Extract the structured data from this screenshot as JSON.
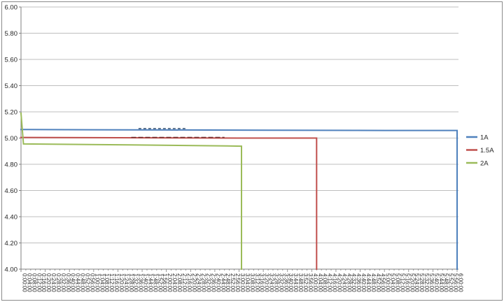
{
  "chart_data": {
    "type": "line",
    "title": "",
    "xlabel": "",
    "ylabel": "",
    "ylim": [
      4.0,
      6.0
    ],
    "ytick_step": 0.2,
    "ytick_labels": [
      "6.00",
      "5.80",
      "5.60",
      "5.40",
      "5.20",
      "5.00",
      "4.80",
      "4.60",
      "4.40",
      "4.20",
      "4.00"
    ],
    "grid": true,
    "x_unit": "elapsed time (h:mm:ss)",
    "x_total_minutes": 360,
    "x_categories": [
      "0:00:00",
      "0:04:00",
      "0:08:00",
      "0:12:00",
      "0:16:00",
      "0:20:00",
      "0:24:00",
      "0:28:00",
      "0:32:00",
      "0:36:00",
      "0:40:00",
      "0:44:00",
      "0:48:00",
      "0:52:00",
      "0:56:00",
      "1:00:00",
      "1:04:00",
      "1:08:00",
      "1:12:00",
      "1:16:00",
      "1:20:00",
      "1:24:00",
      "1:28:00",
      "1:32:00",
      "1:36:00",
      "1:40:00",
      "1:44:00",
      "1:48:00",
      "1:52:00",
      "1:56:00",
      "2:00:00",
      "2:04:00",
      "2:08:00",
      "2:12:00",
      "2:16:00",
      "2:20:00",
      "2:24:00",
      "2:28:00",
      "2:32:00",
      "2:36:00",
      "2:40:00",
      "2:44:00",
      "2:48:00",
      "2:52:00",
      "2:56:00",
      "3:00:00",
      "3:04:00",
      "3:08:00",
      "3:12:00",
      "3:16:00",
      "3:20:00",
      "3:24:00",
      "3:28:00",
      "3:32:00",
      "3:36:00",
      "3:40:00",
      "3:44:00",
      "3:48:00",
      "3:52:00",
      "3:56:00",
      "4:00:00",
      "4:04:00",
      "4:08:00",
      "4:12:00",
      "4:16:00",
      "4:20:00",
      "4:24:00",
      "4:28:00",
      "4:32:00",
      "4:36:00",
      "4:40:00",
      "4:44:00",
      "4:48:00",
      "4:52:00",
      "4:56:00",
      "5:00:00",
      "5:04:00",
      "5:08:00",
      "5:12:00",
      "5:16:00",
      "5:20:00",
      "5:24:00",
      "5:28:00",
      "5:32:00",
      "5:36:00",
      "5:40:00",
      "5:44:00",
      "5:48:00",
      "5:52:00",
      "5:56:00",
      "6:00:00"
    ],
    "legend": {
      "position": "right",
      "entries": [
        {
          "label": "1A",
          "color": "#4F81BD"
        },
        {
          "label": "1.5A",
          "color": "#C0504D"
        },
        {
          "label": "2A",
          "color": "#9BBB59"
        }
      ]
    },
    "series": [
      {
        "name": "1A",
        "color": "#4F81BD",
        "points_min_v": [
          [
            0,
            5.065
          ],
          [
            120,
            5.062
          ],
          [
            300,
            5.058
          ],
          [
            360,
            5.058
          ],
          [
            360,
            4.0
          ]
        ]
      },
      {
        "name": "1.5A",
        "color": "#C0504D",
        "points_min_v": [
          [
            0,
            5.005
          ],
          [
            180,
            5.0
          ],
          [
            244,
            5.0
          ],
          [
            244,
            4.0
          ]
        ]
      },
      {
        "name": "2A",
        "color": "#9BBB59",
        "points_min_v": [
          [
            0,
            5.19
          ],
          [
            2,
            4.955
          ],
          [
            90,
            4.948
          ],
          [
            170,
            4.94
          ],
          [
            182,
            4.938
          ],
          [
            182,
            4.0
          ]
        ]
      }
    ],
    "annotations": [
      {
        "type": "illegible-text-marks",
        "over_series": "1A",
        "t_start_min": 97,
        "t_end_min": 136,
        "color": "#17375E",
        "dy": -2,
        "dash": "4 3"
      },
      {
        "type": "illegible-text-marks",
        "over_series": "1.5A",
        "t_start_min": 91,
        "t_end_min": 168,
        "color": "#632423",
        "dy": -1,
        "dash": "7 3"
      }
    ]
  },
  "style": {
    "background": "#FFFFFF",
    "frame_border": "#8A8A8A",
    "gridline_color": "#BFBFBF",
    "axis_color": "#808080",
    "label_color": "#262626",
    "line_width": 2
  }
}
